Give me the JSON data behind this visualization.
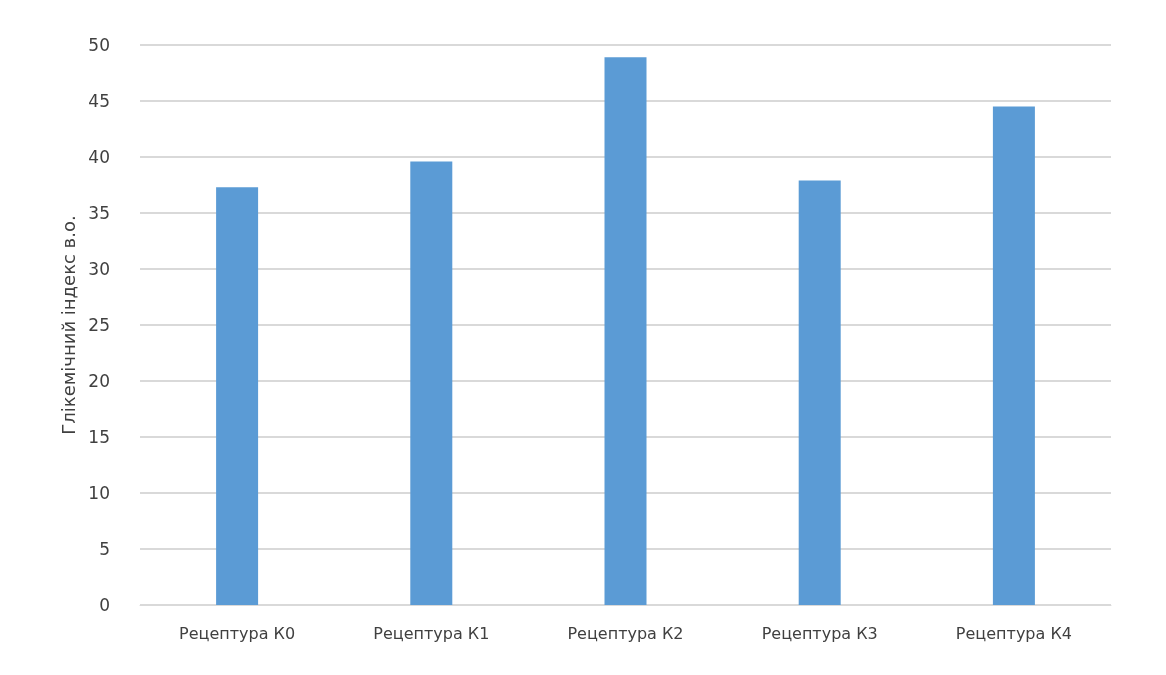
{
  "chart_data": {
    "type": "bar",
    "ylabel": "Глікемічний індекс в.о.",
    "categories": [
      "Рецептура К0",
      "Рецептура К1",
      "Рецептура К2",
      "Рецептура К3",
      "Рецептура К4"
    ],
    "values": [
      37.3,
      39.6,
      48.9,
      37.9,
      44.5
    ],
    "color": "#5b9bd5",
    "ylim": [
      0,
      50
    ],
    "yticks": [
      0,
      5,
      10,
      15,
      20,
      25,
      30,
      35,
      40,
      45,
      50
    ],
    "grid": "y"
  }
}
